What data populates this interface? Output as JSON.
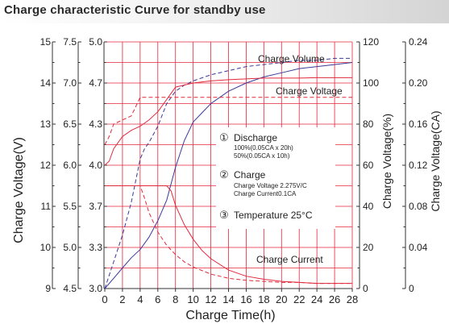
{
  "title": "Charge characteristic Curve for standby use",
  "colors": {
    "grid": "#e4263c",
    "blue_curve": "#3a3a99",
    "red_curve": "#e02a3c",
    "axis": "#333333",
    "title_bg": "#d4d4d4"
  },
  "chart_data": {
    "type": "line",
    "title": "Charge characteristic Curve for standby use",
    "xlabel": "Charge Time(h)",
    "xlim": [
      0,
      28
    ],
    "x_ticks": [
      "0",
      "2",
      "4",
      "6",
      "8",
      "10",
      "12",
      "14",
      "16",
      "18",
      "20",
      "22",
      "24",
      "26",
      "28"
    ],
    "left_axis_label": "Charge Voltage(V)",
    "left_axes": [
      {
        "name": "battery_15v",
        "ticks": [
          "15",
          "14",
          "13",
          "12",
          "11",
          "10",
          "9"
        ],
        "range": [
          9,
          15
        ]
      },
      {
        "name": "battery_7_5v",
        "ticks": [
          "7.5",
          "7.0",
          "6.5",
          "6.0",
          "5.5",
          "5.0",
          "4.5"
        ],
        "range": [
          4.5,
          7.5
        ]
      },
      {
        "name": "battery_5v",
        "ticks": [
          "5.0",
          "4.7",
          "4.3",
          "4.0",
          "3.7",
          "3.3",
          "3.0"
        ],
        "range": [
          3.0,
          5.0
        ]
      }
    ],
    "right_axes": [
      {
        "name": "charge_volume_pct",
        "label": "Charge Voltage(%)",
        "ticks": [
          "120",
          "100",
          "80",
          "60",
          "40",
          "20",
          "0"
        ],
        "range": [
          0,
          120
        ]
      },
      {
        "name": "charge_current_ca",
        "label": "Charge Voltage(CA)",
        "ticks": [
          "0.24",
          "0.20",
          "0.16",
          "0.12",
          "0.08",
          "0.04",
          "0"
        ],
        "range": [
          0,
          0.24
        ]
      }
    ],
    "grid": true,
    "series": [
      {
        "name": "Charge Volume",
        "axis": "charge_volume_pct",
        "style": "solid",
        "color": "#3a3a99",
        "x": [
          0,
          1,
          2,
          3,
          4,
          5,
          6,
          7,
          8,
          9,
          10,
          12,
          14,
          16,
          18,
          20,
          22,
          24,
          26,
          28
        ],
        "y": [
          0,
          5,
          10,
          15,
          19,
          25,
          33,
          43,
          59,
          72,
          81,
          90,
          96,
          100,
          103,
          105,
          107,
          108,
          109,
          110
        ]
      },
      {
        "name": "Charge Volume",
        "axis": "charge_volume_pct",
        "style": "dashed",
        "color": "#3a3a99",
        "x": [
          0,
          1,
          2,
          3,
          4,
          4.5,
          5,
          6,
          7,
          8,
          9,
          10,
          12,
          14,
          16,
          18,
          20,
          22,
          24,
          26,
          28
        ],
        "y": [
          0,
          13,
          26,
          42,
          63,
          68,
          71,
          79,
          90,
          96,
          99,
          101,
          104,
          106,
          108,
          109,
          110,
          111,
          111,
          112,
          112
        ]
      },
      {
        "name": "Charge Voltage",
        "axis": "battery_15v",
        "style": "solid",
        "color": "#e02a3c",
        "x": [
          0,
          0.5,
          1,
          2,
          3,
          4,
          5,
          6,
          7,
          8,
          10,
          12,
          14,
          16,
          18,
          20,
          22,
          24,
          26,
          28
        ],
        "y": [
          12.0,
          12.1,
          12.4,
          12.7,
          12.85,
          12.95,
          13.1,
          13.3,
          13.6,
          13.9,
          14.0,
          14.05,
          14.08,
          14.1,
          14.12,
          14.12,
          14.12,
          14.13,
          14.13,
          14.13
        ]
      },
      {
        "name": "Charge Voltage",
        "axis": "battery_15v",
        "style": "dashed",
        "color": "#e02a3c",
        "x": [
          0,
          0.5,
          1,
          2,
          3,
          4,
          5,
          6,
          7,
          8,
          10,
          12,
          14,
          16,
          18,
          20,
          22,
          24,
          26,
          28
        ],
        "y": [
          12.5,
          12.7,
          13.0,
          13.1,
          13.2,
          13.65,
          13.65,
          13.65,
          13.65,
          13.65,
          13.65,
          13.65,
          13.65,
          13.65,
          13.65,
          13.65,
          13.65,
          13.65,
          13.65,
          13.65
        ]
      },
      {
        "name": "Charge Current",
        "axis": "charge_current_ca",
        "style": "solid",
        "color": "#e02a3c",
        "x": [
          0,
          7,
          7.5,
          8,
          9,
          10,
          11,
          12,
          14,
          16,
          18,
          20,
          22,
          24,
          26,
          28
        ],
        "y": [
          0.1,
          0.1,
          0.095,
          0.081,
          0.062,
          0.048,
          0.037,
          0.029,
          0.018,
          0.012,
          0.009,
          0.007,
          0.006,
          0.005,
          0.005,
          0.005
        ]
      },
      {
        "name": "Charge Current",
        "axis": "charge_current_ca",
        "style": "dashed",
        "color": "#e02a3c",
        "x": [
          0,
          4,
          4.5,
          5,
          6,
          7,
          8,
          9,
          10,
          12,
          14,
          16,
          18,
          20,
          22,
          24,
          26,
          28
        ],
        "y": [
          0.1,
          0.1,
          0.088,
          0.074,
          0.055,
          0.042,
          0.033,
          0.026,
          0.021,
          0.014,
          0.01,
          0.008,
          0.007,
          0.006,
          0.006,
          0.005,
          0.005,
          0.005
        ]
      }
    ],
    "annotations": {
      "charge_volume_label": "Charge Volume",
      "charge_voltage_label": "Charge Voltage",
      "charge_current_label": "Charge Current",
      "discharge_num": "①",
      "discharge_title": "Discharge",
      "discharge_line1": "100%(0.05CA x 20h)",
      "discharge_line2": "50%(0.05CA x 10h)",
      "charge_num": "②",
      "charge_title": "Charge",
      "charge_line1": "Charge Voltage 2.275V/C",
      "charge_line2": "Charge Current0.1CA",
      "temp_num": "③",
      "temp_text": "Temperature 25°C"
    }
  }
}
